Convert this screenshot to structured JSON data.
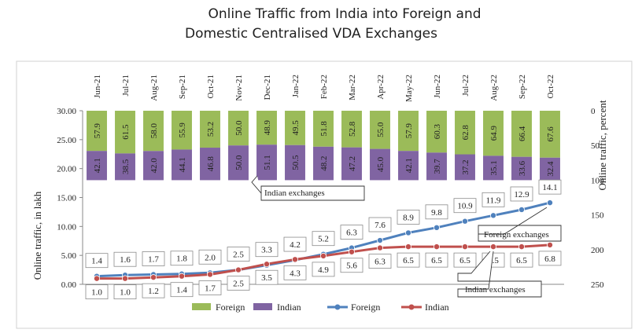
{
  "title_line1": "Online Traffic from India into Foreign and",
  "title_line2": "Domestic Centralised VDA Exchanges",
  "chart_data": {
    "type": "bar",
    "title": "Online Traffic from India into Foreign and Domestic Centralised VDA Exchanges",
    "categories": [
      "Jun-21",
      "Jul-21",
      "Aug-21",
      "Sep-21",
      "Oct-21",
      "Nov-21",
      "Dec-21",
      "Jan-22",
      "Feb-22",
      "Mar-22",
      "Apr-22",
      "May-22",
      "Jun-22",
      "Jul-22",
      "Aug-22",
      "Sep-22",
      "Oct-22"
    ],
    "bar_series": [
      {
        "name": "Foreign",
        "color": "#9bbb59",
        "values": [
          57.9,
          61.5,
          58.0,
          55.9,
          53.2,
          50.0,
          48.9,
          49.5,
          51.8,
          52.8,
          55.0,
          57.9,
          60.3,
          62.8,
          64.9,
          66.4,
          67.6
        ]
      },
      {
        "name": "Indian",
        "color": "#8064a2",
        "values": [
          42.1,
          38.5,
          42.0,
          44.1,
          46.8,
          50.0,
          51.1,
          50.5,
          48.2,
          47.2,
          45.0,
          42.1,
          39.7,
          37.2,
          35.1,
          33.6,
          32.4
        ]
      }
    ],
    "line_series": [
      {
        "name": "Foreign",
        "color": "#4f81bd",
        "values": [
          1.4,
          1.6,
          1.7,
          1.8,
          2.0,
          2.5,
          3.3,
          4.2,
          5.2,
          6.3,
          7.6,
          8.9,
          9.8,
          10.9,
          11.9,
          12.9,
          14.1
        ]
      },
      {
        "name": "Indian",
        "color": "#c0504d",
        "values": [
          1.0,
          1.0,
          1.2,
          1.4,
          1.7,
          2.5,
          3.5,
          4.3,
          4.9,
          5.6,
          6.3,
          6.5,
          6.5,
          6.5,
          6.5,
          6.5,
          6.8
        ]
      }
    ],
    "y_left": {
      "label": "Online traffic, in lakh",
      "ticks": [
        "0.00",
        "5.00",
        "10.00",
        "15.00",
        "20.00",
        "25.00",
        "30.00"
      ],
      "range": [
        0,
        30
      ]
    },
    "y_right": {
      "label": "Online traffic, percent",
      "ticks": [
        "0",
        "50",
        "100",
        "150",
        "200",
        "250"
      ],
      "range": [
        0,
        250
      ],
      "reversed": true
    },
    "grid": false,
    "legend_position": "bottom",
    "legend": [
      {
        "label": "Foreign",
        "kind": "bar",
        "color": "#9bbb59"
      },
      {
        "label": "Indian",
        "kind": "bar",
        "color": "#8064a2"
      },
      {
        "label": "Foreign",
        "kind": "line",
        "color": "#4f81bd"
      },
      {
        "label": "Indian",
        "kind": "line",
        "color": "#c0504d"
      }
    ],
    "annotations": [
      {
        "text": "Indian exchanges",
        "series": "bar"
      },
      {
        "text": "Foreign exchanges",
        "series": "line"
      },
      {
        "text": "Indian exchanges",
        "series": "line"
      }
    ]
  }
}
